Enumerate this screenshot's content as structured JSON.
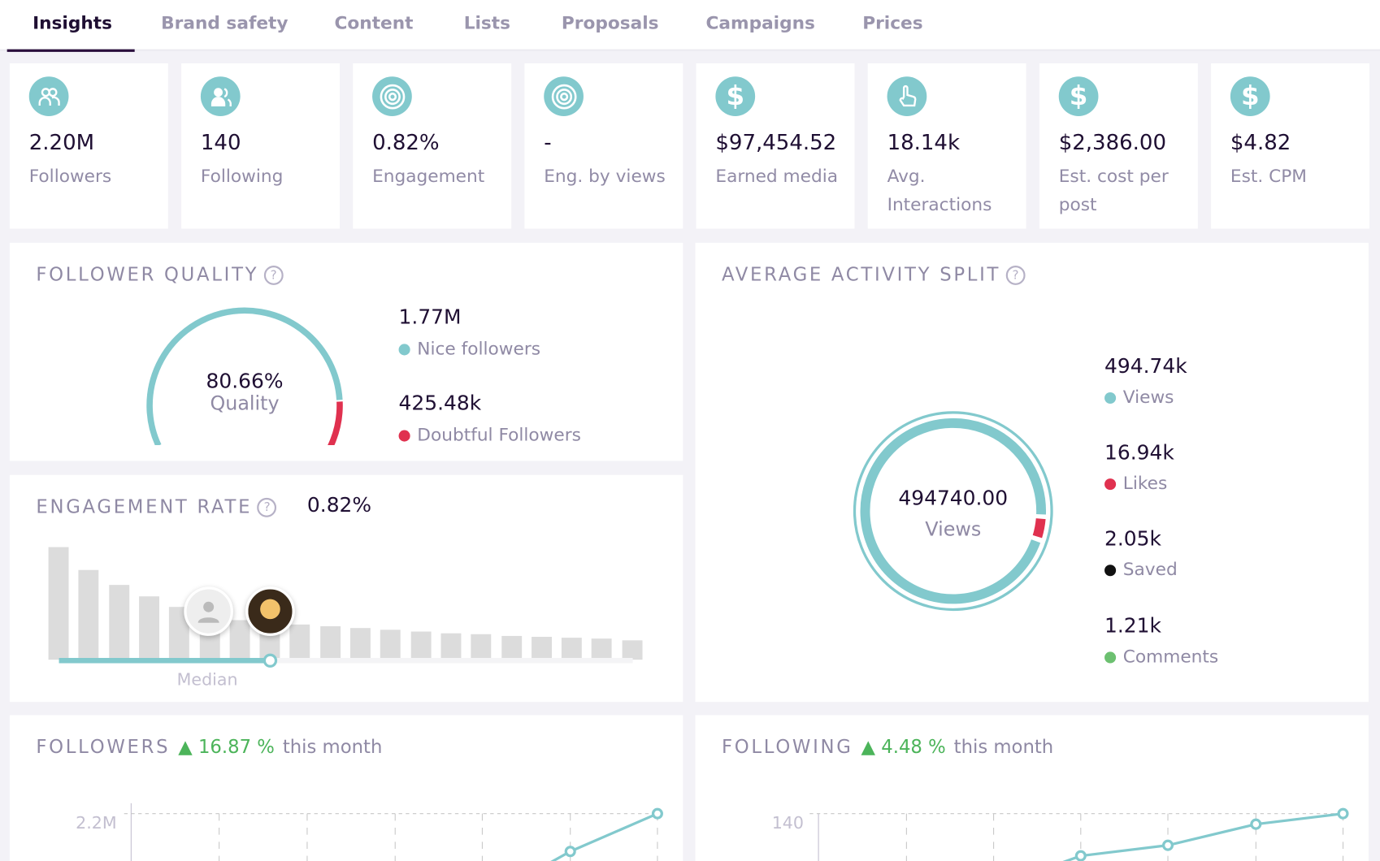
{
  "tabs": [
    "Insights",
    "Brand safety",
    "Content",
    "Lists",
    "Proposals",
    "Campaigns",
    "Prices"
  ],
  "active_tab": "Insights",
  "stats": [
    {
      "icon": "followers-icon",
      "value": "2.20M",
      "label": "Followers"
    },
    {
      "icon": "following-icon",
      "value": "140",
      "label": "Following"
    },
    {
      "icon": "target-icon",
      "value": "0.82%",
      "label": "Engagement"
    },
    {
      "icon": "target-icon",
      "value": "-",
      "label": "Eng. by views"
    },
    {
      "icon": "dollar-icon",
      "value": "$97,454.52",
      "label": "Earned media"
    },
    {
      "icon": "pointer-hand-icon",
      "value": "18.14k",
      "label": "Avg. Interactions"
    },
    {
      "icon": "dollar-icon",
      "value": "$2,386.00",
      "label": "Est. cost per post"
    },
    {
      "icon": "dollar-icon",
      "value": "$4.82",
      "label": "Est. CPM"
    }
  ],
  "follower_quality": {
    "title": "FOLLOWER QUALITY",
    "help": "?",
    "percent": "80.66%",
    "percent_label": "Quality",
    "quality_fraction": 0.8066,
    "nice": {
      "value": "1.77M",
      "label": "Nice followers",
      "color": "#82c9cd"
    },
    "doubtful": {
      "value": "425.48k",
      "label": "Doubtful Followers",
      "color": "#e0314f"
    }
  },
  "engagement_rate": {
    "title": "ENGAGEMENT RATE",
    "help": "?",
    "value": "0.82%",
    "median_label": "Median",
    "bar_color": "#dcdcdc",
    "accent": "#82c9cd"
  },
  "activity": {
    "title": "AVERAGE ACTIVITY SPLIT",
    "help": "?",
    "center_value": "494740.00",
    "center_label": "Views",
    "items": [
      {
        "value": "494.74k",
        "label": "Views",
        "color": "#82c9cd"
      },
      {
        "value": "16.94k",
        "label": "Likes",
        "color": "#e0314f"
      },
      {
        "value": "2.05k",
        "label": "Saved",
        "color": "#111111"
      },
      {
        "value": "1.21k",
        "label": "Comments",
        "color": "#6cc070"
      }
    ]
  },
  "followers_growth": {
    "title": "FOLLOWERS",
    "change": "16.87 %",
    "suffix": "this month",
    "y_tick": "2.2M"
  },
  "following_growth": {
    "title": "FOLLOWING",
    "change": "4.48 %",
    "suffix": "this month",
    "y_tick": "140"
  },
  "colors": {
    "accent": "#82c9cd",
    "text": "#1f0f33",
    "muted": "#8f89a4",
    "up": "#4cb45a"
  }
}
